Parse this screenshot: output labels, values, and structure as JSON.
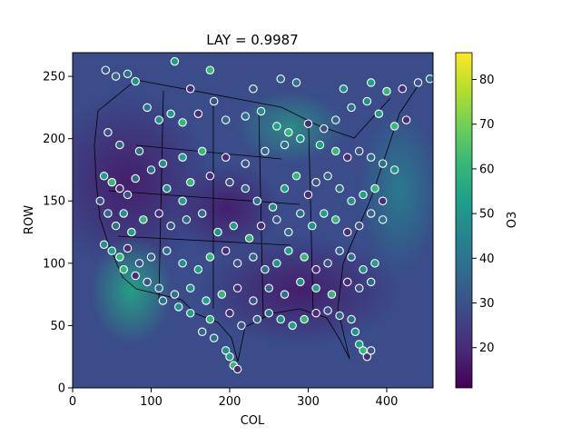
{
  "chart_data": {
    "type": "heatmap",
    "title": "LAY = 0.9987",
    "xlabel": "COL",
    "ylabel": "ROW",
    "xlim": [
      0,
      459
    ],
    "ylim": [
      0,
      269
    ],
    "x_ticks": [
      0,
      100,
      200,
      300,
      400
    ],
    "y_ticks": [
      0,
      50,
      100,
      150,
      200,
      250
    ],
    "colorbar": {
      "label": "O3",
      "range": [
        11,
        86
      ],
      "ticks": [
        20,
        30,
        40,
        50,
        60,
        70,
        80
      ],
      "colormap": "viridis",
      "colors": [
        "#440154",
        "#482878",
        "#3e4989",
        "#31688e",
        "#26828e",
        "#1f9e89",
        "#35b779",
        "#6ece58",
        "#b5de2b",
        "#fde725"
      ]
    },
    "background_field": "gridded surface ozone over CONUS, mostly 20-35 ppb with higher values (40-60) over the Great Lakes, southwest desert and Atlantic coastal waters",
    "overlay": {
      "type": "scatter",
      "marker": "circle",
      "edgecolor": "#ffffff",
      "description": "monitoring stations colored by observed O3",
      "points": [
        [
          42,
          255
        ],
        [
          55,
          250
        ],
        [
          70,
          252
        ],
        [
          80,
          246
        ],
        [
          130,
          262
        ],
        [
          175,
          255
        ],
        [
          150,
          240
        ],
        [
          230,
          240
        ],
        [
          265,
          248
        ],
        [
          285,
          245
        ],
        [
          345,
          240
        ],
        [
          380,
          245
        ],
        [
          400,
          238
        ],
        [
          420,
          240
        ],
        [
          440,
          245
        ],
        [
          455,
          248
        ],
        [
          95,
          225
        ],
        [
          110,
          215
        ],
        [
          125,
          220
        ],
        [
          140,
          213
        ],
        [
          160,
          220
        ],
        [
          180,
          230
        ],
        [
          195,
          215
        ],
        [
          220,
          218
        ],
        [
          240,
          222
        ],
        [
          260,
          210
        ],
        [
          275,
          205
        ],
        [
          300,
          212
        ],
        [
          320,
          208
        ],
        [
          335,
          215
        ],
        [
          355,
          225
        ],
        [
          375,
          230
        ],
        [
          390,
          220
        ],
        [
          410,
          210
        ],
        [
          425,
          215
        ],
        [
          45,
          205
        ],
        [
          60,
          195
        ],
        [
          85,
          190
        ],
        [
          115,
          180
        ],
        [
          140,
          185
        ],
        [
          165,
          190
        ],
        [
          195,
          185
        ],
        [
          220,
          180
        ],
        [
          245,
          190
        ],
        [
          270,
          195
        ],
        [
          290,
          200
        ],
        [
          315,
          195
        ],
        [
          335,
          190
        ],
        [
          350,
          185
        ],
        [
          365,
          190
        ],
        [
          380,
          185
        ],
        [
          395,
          180
        ],
        [
          410,
          175
        ],
        [
          40,
          170
        ],
        [
          50,
          165
        ],
        [
          60,
          160
        ],
        [
          70,
          155
        ],
        [
          80,
          168
        ],
        [
          100,
          175
        ],
        [
          120,
          160
        ],
        [
          140,
          150
        ],
        [
          150,
          165
        ],
        [
          175,
          170
        ],
        [
          200,
          165
        ],
        [
          220,
          160
        ],
        [
          235,
          150
        ],
        [
          255,
          145
        ],
        [
          270,
          160
        ],
        [
          285,
          170
        ],
        [
          300,
          155
        ],
        [
          310,
          165
        ],
        [
          325,
          170
        ],
        [
          340,
          160
        ],
        [
          355,
          150
        ],
        [
          370,
          155
        ],
        [
          385,
          160
        ],
        [
          395,
          150
        ],
        [
          35,
          150
        ],
        [
          45,
          140
        ],
        [
          55,
          130
        ],
        [
          65,
          140
        ],
        [
          75,
          125
        ],
        [
          90,
          135
        ],
        [
          110,
          140
        ],
        [
          125,
          130
        ],
        [
          145,
          135
        ],
        [
          165,
          140
        ],
        [
          185,
          125
        ],
        [
          205,
          130
        ],
        [
          225,
          120
        ],
        [
          240,
          130
        ],
        [
          260,
          135
        ],
        [
          275,
          125
        ],
        [
          290,
          140
        ],
        [
          305,
          130
        ],
        [
          320,
          140
        ],
        [
          335,
          135
        ],
        [
          350,
          125
        ],
        [
          365,
          130
        ],
        [
          380,
          140
        ],
        [
          395,
          135
        ],
        [
          40,
          115
        ],
        [
          50,
          110
        ],
        [
          60,
          105
        ],
        [
          70,
          112
        ],
        [
          85,
          100
        ],
        [
          100,
          105
        ],
        [
          120,
          110
        ],
        [
          140,
          100
        ],
        [
          160,
          95
        ],
        [
          175,
          105
        ],
        [
          195,
          110
        ],
        [
          210,
          100
        ],
        [
          230,
          105
        ],
        [
          245,
          95
        ],
        [
          260,
          100
        ],
        [
          275,
          110
        ],
        [
          295,
          105
        ],
        [
          310,
          95
        ],
        [
          325,
          100
        ],
        [
          340,
          110
        ],
        [
          355,
          105
        ],
        [
          370,
          95
        ],
        [
          385,
          100
        ],
        [
          65,
          95
        ],
        [
          80,
          90
        ],
        [
          95,
          85
        ],
        [
          110,
          80
        ],
        [
          130,
          75
        ],
        [
          150,
          80
        ],
        [
          170,
          70
        ],
        [
          190,
          75
        ],
        [
          210,
          80
        ],
        [
          230,
          70
        ],
        [
          250,
          80
        ],
        [
          270,
          75
        ],
        [
          290,
          85
        ],
        [
          310,
          80
        ],
        [
          330,
          75
        ],
        [
          350,
          85
        ],
        [
          365,
          80
        ],
        [
          380,
          85
        ],
        [
          115,
          70
        ],
        [
          135,
          65
        ],
        [
          150,
          60
        ],
        [
          175,
          55
        ],
        [
          200,
          60
        ],
        [
          215,
          50
        ],
        [
          235,
          55
        ],
        [
          250,
          60
        ],
        [
          265,
          55
        ],
        [
          280,
          50
        ],
        [
          295,
          55
        ],
        [
          310,
          60
        ],
        [
          325,
          62
        ],
        [
          340,
          58
        ],
        [
          355,
          55
        ],
        [
          360,
          45
        ],
        [
          365,
          35
        ],
        [
          370,
          30
        ],
        [
          375,
          25
        ],
        [
          380,
          30
        ],
        [
          165,
          45
        ],
        [
          180,
          40
        ],
        [
          195,
          30
        ],
        [
          200,
          25
        ],
        [
          205,
          18
        ],
        [
          210,
          15
        ]
      ]
    }
  }
}
